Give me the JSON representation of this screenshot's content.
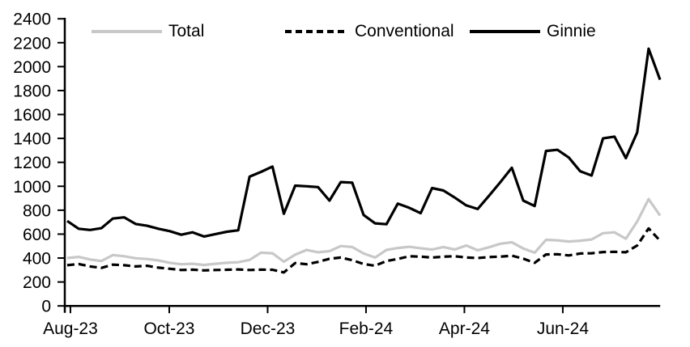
{
  "chart_data": {
    "type": "line",
    "title": "",
    "xlabel": "",
    "ylabel": "",
    "x_unit": "weekly observations, Aug-2023 through mid-Aug-2024",
    "ylim": [
      0,
      2400
    ],
    "y_tick_step": 200,
    "y_tick_labels": [
      "0",
      "200",
      "400",
      "600",
      "800",
      "1000",
      "1200",
      "1400",
      "1600",
      "1800",
      "2000",
      "2200",
      "2400"
    ],
    "x_tick_labels": [
      "Aug-23",
      "Oct-23",
      "Dec-23",
      "Feb-24",
      "Apr-24",
      "Jun-24"
    ],
    "x_tick_weeks": [
      0.28,
      8.95,
      17.58,
      26.21,
      34.84,
      43.47
    ],
    "grid": "off",
    "legend_position": "top",
    "axis_color": "#000000",
    "series": [
      {
        "name": "Total",
        "color": "#c8c8c8",
        "style": "solid",
        "values": [
          400,
          410,
          388,
          375,
          425,
          415,
          398,
          392,
          380,
          360,
          348,
          352,
          342,
          352,
          360,
          365,
          385,
          445,
          440,
          370,
          428,
          468,
          448,
          458,
          500,
          492,
          438,
          404,
          468,
          484,
          494,
          482,
          471,
          492,
          471,
          505,
          465,
          490,
          520,
          532,
          480,
          445,
          552,
          548,
          538,
          545,
          556,
          608,
          615,
          562,
          705,
          893,
          755
        ]
      },
      {
        "name": "Conventional",
        "color": "#000000",
        "style": "dashed",
        "values": [
          340,
          350,
          330,
          318,
          345,
          340,
          330,
          335,
          320,
          310,
          300,
          303,
          297,
          300,
          302,
          305,
          300,
          303,
          302,
          280,
          358,
          348,
          368,
          394,
          404,
          382,
          350,
          336,
          375,
          392,
          415,
          412,
          404,
          412,
          415,
          405,
          400,
          408,
          412,
          420,
          395,
          360,
          430,
          432,
          422,
          438,
          440,
          450,
          452,
          448,
          505,
          648,
          545
        ]
      },
      {
        "name": "Ginnie",
        "color": "#000000",
        "style": "solid",
        "values": [
          710,
          645,
          635,
          650,
          730,
          740,
          685,
          670,
          645,
          625,
          595,
          615,
          580,
          600,
          620,
          632,
          1080,
          1120,
          1165,
          770,
          1005,
          1000,
          993,
          880,
          1035,
          1030,
          760,
          690,
          683,
          855,
          820,
          775,
          985,
          965,
          905,
          840,
          810,
          920,
          1035,
          1155,
          880,
          835,
          1295,
          1305,
          1240,
          1125,
          1090,
          1400,
          1415,
          1235,
          1450,
          2150,
          1890
        ]
      }
    ]
  }
}
